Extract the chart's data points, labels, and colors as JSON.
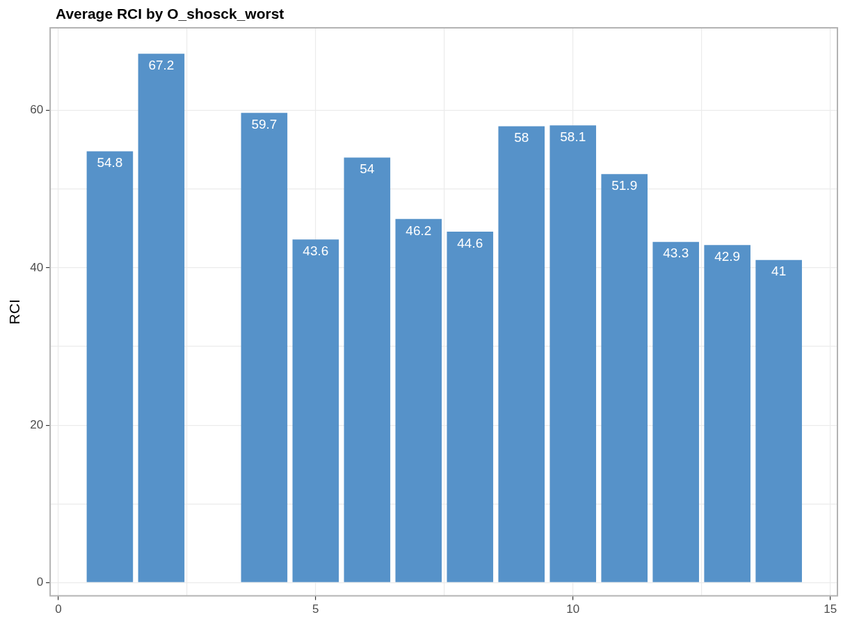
{
  "chart_data": {
    "type": "bar",
    "title": "Average RCI by O_shosck_worst",
    "ylabel": "RCI",
    "x": [
      1,
      2,
      4,
      5,
      6,
      7,
      8,
      9,
      10,
      11,
      12,
      13,
      14
    ],
    "values": [
      54.8,
      67.2,
      59.7,
      43.6,
      54,
      46.2,
      44.6,
      58,
      58.1,
      51.9,
      43.3,
      42.9,
      41
    ],
    "color": "#5692c9",
    "data_labels": true,
    "xlim": [
      -0.16,
      15.14
    ],
    "xticks": [
      0,
      {
        "value": 2.5,
        "label": null
      },
      5,
      {
        "value": 7.5,
        "label": null
      },
      10,
      {
        "value": 12.5,
        "label": null
      },
      15
    ],
    "ylim": [
      -1.7,
      70.5
    ],
    "yticks": [
      0,
      {
        "value": 10,
        "label": null
      },
      20,
      {
        "value": 30,
        "label": null
      },
      40,
      {
        "value": 50,
        "label": null
      },
      60
    ],
    "grid": true,
    "legend": false
  }
}
